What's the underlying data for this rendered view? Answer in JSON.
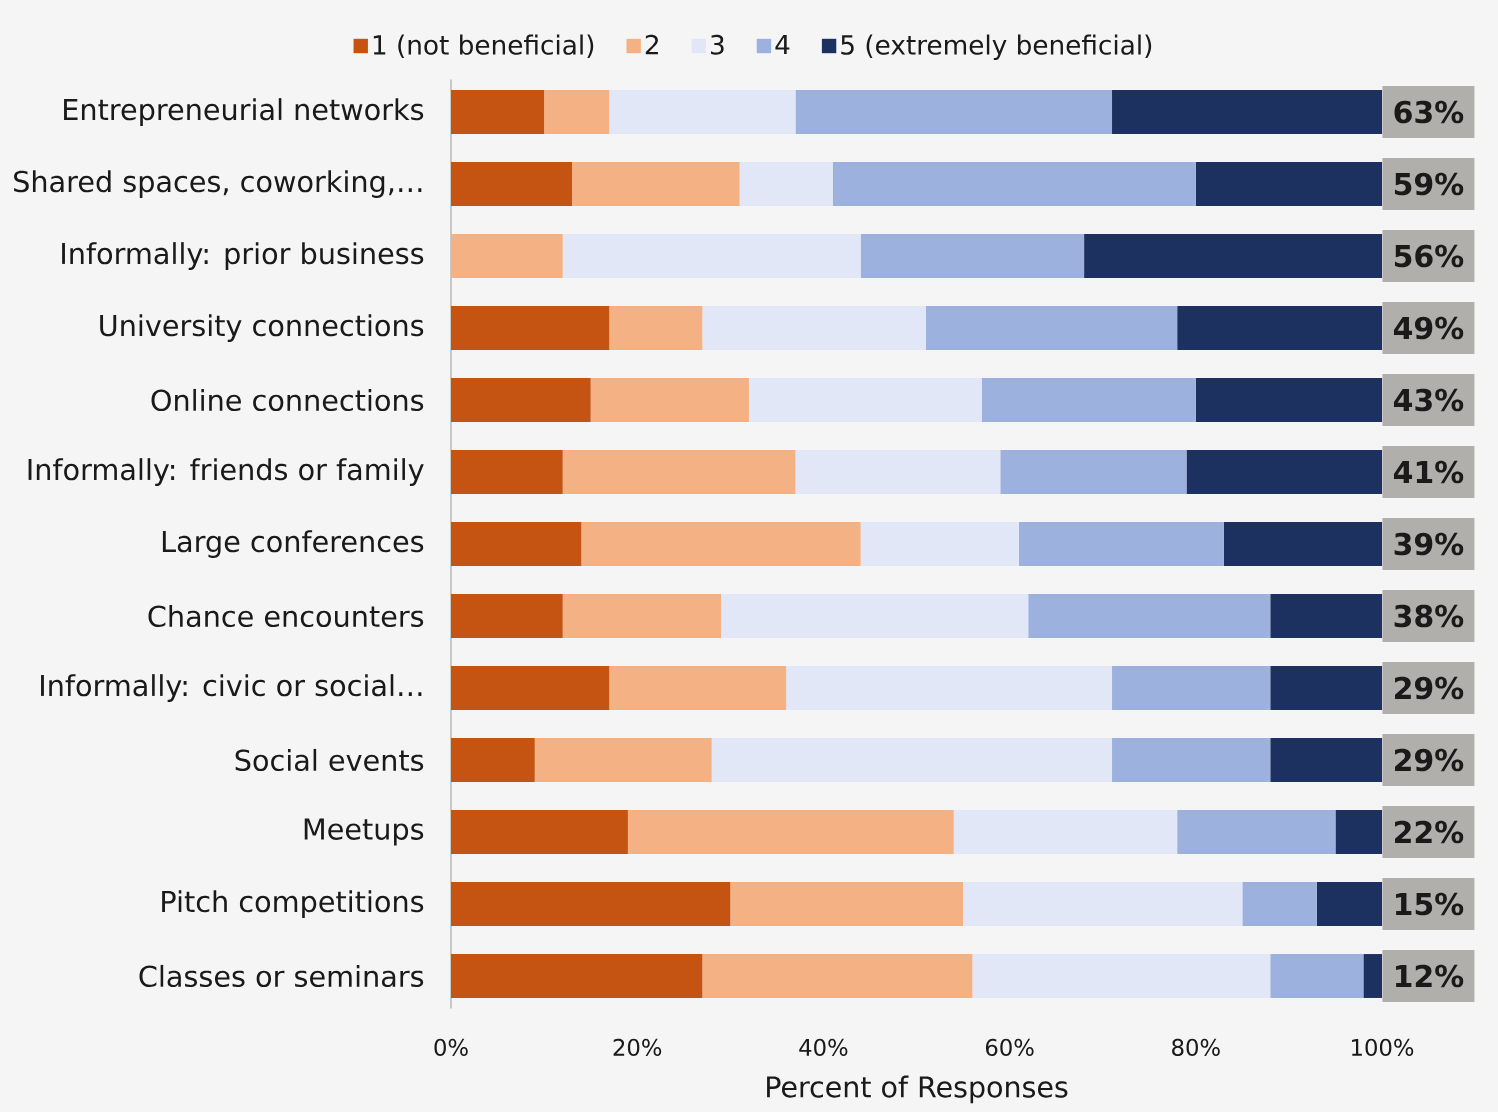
{
  "chart_data": {
    "type": "bar",
    "orientation": "horizontal",
    "stacked": true,
    "categories": [
      "Entrepreneurial networks",
      "Shared spaces, coworking,…",
      "Informally: prior business",
      "University connections",
      "Online connections",
      "Informally: friends or family",
      "Large conferences",
      "Chance encounters",
      "Informally: civic or social…",
      "Social events",
      "Meetups",
      "Pitch competitions",
      "Classes or seminars"
    ],
    "series": [
      {
        "name": "1 (not beneficial)",
        "color": "#c55311",
        "values": [
          10,
          13,
          null,
          17,
          15,
          12,
          14,
          12,
          17,
          9,
          19,
          30,
          27
        ]
      },
      {
        "name": "2",
        "color": "#f4b183",
        "values": [
          7,
          18,
          12,
          10,
          17,
          25,
          30,
          17,
          19,
          19,
          35,
          25,
          29
        ]
      },
      {
        "name": "3",
        "color": "#e1e7f6",
        "values": [
          20,
          10,
          32,
          24,
          25,
          22,
          17,
          33,
          35,
          43,
          24,
          30,
          32
        ]
      },
      {
        "name": "4",
        "color": "#9cb1dd",
        "values": [
          34,
          39,
          24,
          27,
          23,
          20,
          22,
          26,
          17,
          17,
          17,
          8,
          10
        ]
      },
      {
        "name": "5 (extremely beneficial)",
        "color": "#1d3160",
        "values": [
          29,
          20,
          32,
          22,
          20,
          21,
          17,
          12,
          12,
          12,
          5,
          7,
          2
        ]
      }
    ],
    "xlabel": "Percent of Responses",
    "xlim": [
      0,
      100
    ],
    "xticks": [
      {
        "value": 0,
        "label": "0%"
      },
      {
        "value": 20,
        "label": "20%"
      },
      {
        "value": 40,
        "label": "40%"
      },
      {
        "value": 60,
        "label": "60%"
      },
      {
        "value": 80,
        "label": "80%"
      },
      {
        "value": 100,
        "label": "100%"
      }
    ],
    "legend": "top",
    "annotations": [
      "63%",
      "59%",
      "56%",
      "49%",
      "43%",
      "41%",
      "39%",
      "38%",
      "29%",
      "29%",
      "22%",
      "15%",
      "12%"
    ]
  }
}
